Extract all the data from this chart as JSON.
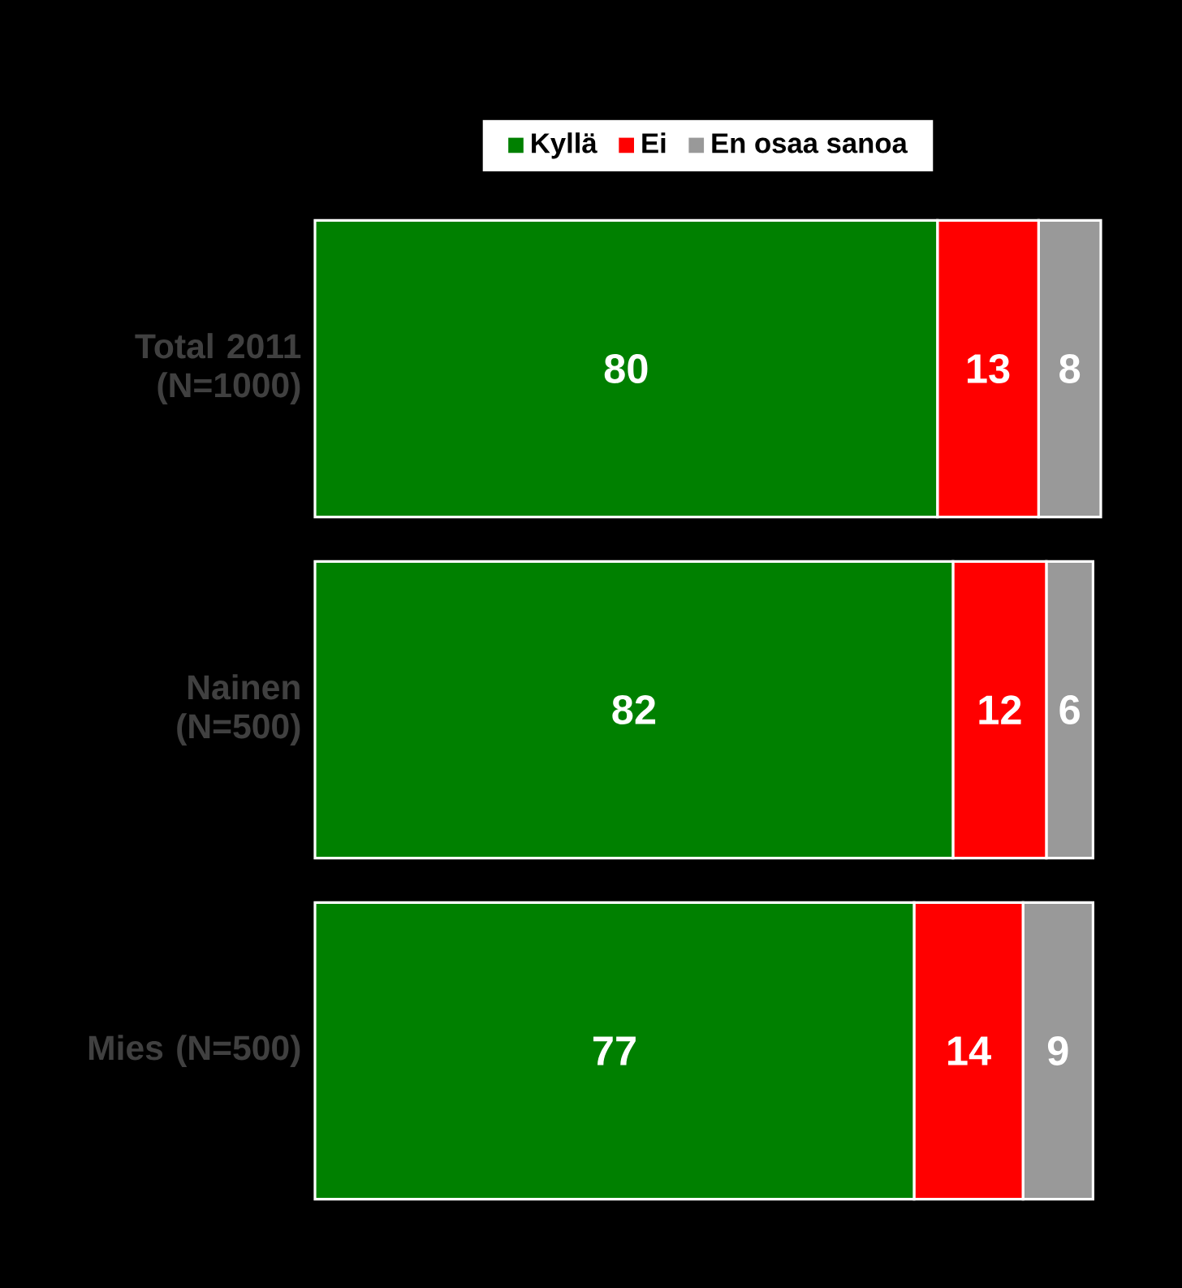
{
  "chart_data": {
    "type": "bar",
    "orientation": "horizontal",
    "stacked": true,
    "categories": [
      "Total 2011 (N=1000)",
      "Nainen (N=500)",
      "Mies (N=500)"
    ],
    "series": [
      {
        "name": "Kyllä",
        "color": "#008000",
        "values": [
          80,
          82,
          77
        ]
      },
      {
        "name": "Ei",
        "color": "#ff0000",
        "values": [
          13,
          12,
          14
        ]
      },
      {
        "name": "En osaa sanoa",
        "color": "#999999",
        "values": [
          8,
          6,
          9
        ]
      }
    ],
    "data_labels": true,
    "legend": "top",
    "grid": false
  }
}
